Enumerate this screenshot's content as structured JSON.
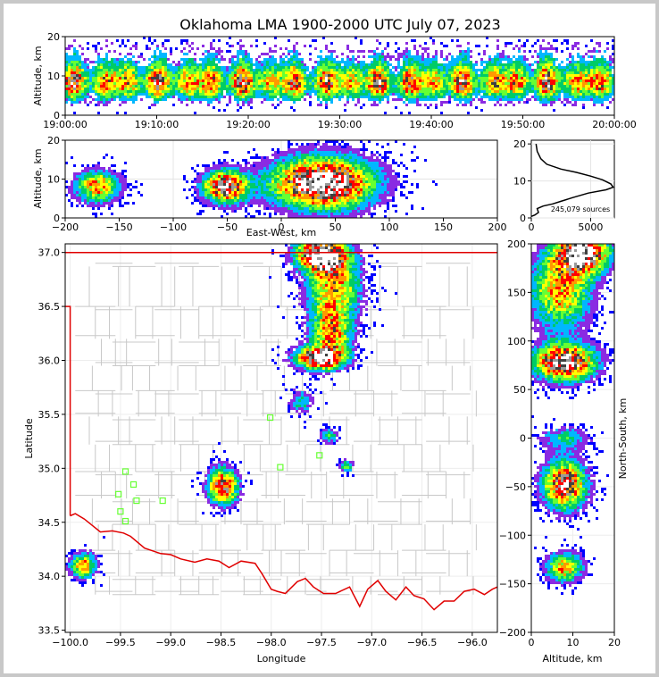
{
  "figure": {
    "title": "Oklahoma LMA 1900-2000 UTC July 07, 2023"
  },
  "colors": {
    "state_border": "#e00000",
    "county_border": "#c8c8c8",
    "station_marker": "#66ff33",
    "frame": "#c8c8c8"
  },
  "chart_data": [
    {
      "id": "time-height",
      "type": "heatmap",
      "ylabel": "Altitude, km",
      "ylim": [
        0,
        20
      ],
      "yticks": [
        0,
        10,
        20
      ],
      "xlim_minutes": [
        0,
        60
      ],
      "xticks": [
        "19:00:00",
        "19:10:00",
        "19:20:00",
        "19:30:00",
        "19:40:00",
        "19:50:00",
        "20:00:00"
      ],
      "density_peak_altitude_km": 8
    },
    {
      "id": "ew-altitude",
      "type": "heatmap",
      "xlabel": "East-West, km",
      "ylabel": "Altitude, km",
      "xlim": [
        -200,
        200
      ],
      "ylim": [
        0,
        20
      ],
      "xticks": [
        -200,
        -150,
        -100,
        -50,
        0,
        50,
        100,
        150,
        200
      ],
      "yticks": [
        0,
        10,
        20
      ],
      "clusters": [
        {
          "x": -170,
          "z": 8,
          "intensity": 0.6
        },
        {
          "x": -52,
          "z": 8,
          "intensity": 0.85
        },
        {
          "x": 38,
          "z": 9,
          "intensity": 1.0
        }
      ]
    },
    {
      "id": "altitude-histogram",
      "type": "line",
      "xlim": [
        0,
        7000
      ],
      "ylim": [
        0,
        21
      ],
      "xticks": [
        0,
        5000
      ],
      "yticks": [
        0,
        10,
        20
      ],
      "annotation": "245,079 sources",
      "points": [
        [
          0,
          0.4
        ],
        [
          300,
          0.8
        ],
        [
          600,
          1.5
        ],
        [
          500,
          2.5
        ],
        [
          1000,
          3.2
        ],
        [
          1800,
          3.8
        ],
        [
          2500,
          4.5
        ],
        [
          3500,
          5.5
        ],
        [
          4800,
          6.7
        ],
        [
          6300,
          7.6
        ],
        [
          6900,
          8.3
        ],
        [
          6700,
          9.2
        ],
        [
          6000,
          10.3
        ],
        [
          5000,
          11.3
        ],
        [
          3800,
          12.3
        ],
        [
          2500,
          13.2
        ],
        [
          1300,
          14.5
        ],
        [
          800,
          16
        ],
        [
          500,
          18
        ],
        [
          400,
          20
        ]
      ]
    },
    {
      "id": "plan-view",
      "type": "heatmap",
      "xlabel": "Longitude",
      "ylabel": "Latitude",
      "xlim": [
        -100.05,
        -95.75
      ],
      "ylim": [
        33.48,
        37.08
      ],
      "xticks": [
        -100.0,
        -99.5,
        -99.0,
        -98.5,
        -98.0,
        -97.5,
        -97.0,
        -96.5,
        -96.0
      ],
      "yticks": [
        33.5,
        34.0,
        34.5,
        35.0,
        35.5,
        36.0,
        36.5,
        37.0
      ],
      "xtick_labels": [
        "−100.0",
        "−99.5",
        "−99.0",
        "−98.5",
        "−98.0",
        "−97.5",
        "−97.0",
        "−96.5",
        "−96.0"
      ],
      "ytick_labels": [
        "33.5",
        "34.0",
        "34.5",
        "35.0",
        "35.5",
        "36.0",
        "36.5",
        "37.0"
      ],
      "stations": [
        [
          -98.01,
          35.47
        ],
        [
          -97.91,
          35.01
        ],
        [
          -99.45,
          34.97
        ],
        [
          -99.37,
          34.85
        ],
        [
          -99.52,
          34.76
        ],
        [
          -99.34,
          34.7
        ],
        [
          -99.5,
          34.6
        ],
        [
          -99.45,
          34.51
        ],
        [
          -99.08,
          34.7
        ],
        [
          -97.52,
          35.12
        ]
      ],
      "state_border": [
        [
          -100.05,
          37.0
        ],
        [
          -95.75,
          37.0
        ]
      ],
      "panhandle_edge": [
        [
          -100.05,
          36.5
        ],
        [
          -100.0,
          36.5
        ],
        [
          -100.0,
          34.56
        ]
      ],
      "red_river": [
        [
          -100.0,
          34.56
        ],
        [
          -99.95,
          34.58
        ],
        [
          -99.86,
          34.53
        ],
        [
          -99.7,
          34.41
        ],
        [
          -99.58,
          34.42
        ],
        [
          -99.47,
          34.4
        ],
        [
          -99.4,
          34.37
        ],
        [
          -99.26,
          34.26
        ],
        [
          -99.1,
          34.21
        ],
        [
          -99.0,
          34.2
        ],
        [
          -98.9,
          34.16
        ],
        [
          -98.76,
          34.13
        ],
        [
          -98.64,
          34.16
        ],
        [
          -98.52,
          34.14
        ],
        [
          -98.42,
          34.08
        ],
        [
          -98.3,
          34.14
        ],
        [
          -98.16,
          34.12
        ],
        [
          -98.09,
          34.02
        ],
        [
          -98.0,
          33.88
        ],
        [
          -97.94,
          33.86
        ],
        [
          -97.86,
          33.84
        ],
        [
          -97.74,
          33.95
        ],
        [
          -97.66,
          33.98
        ],
        [
          -97.58,
          33.9
        ],
        [
          -97.48,
          33.84
        ],
        [
          -97.36,
          33.84
        ],
        [
          -97.22,
          33.9
        ],
        [
          -97.12,
          33.72
        ],
        [
          -97.04,
          33.88
        ],
        [
          -96.94,
          33.96
        ],
        [
          -96.86,
          33.86
        ],
        [
          -96.76,
          33.78
        ],
        [
          -96.66,
          33.9
        ],
        [
          -96.58,
          33.82
        ],
        [
          -96.48,
          33.79
        ],
        [
          -96.38,
          33.69
        ],
        [
          -96.28,
          33.77
        ],
        [
          -96.18,
          33.77
        ],
        [
          -96.08,
          33.86
        ],
        [
          -95.98,
          33.88
        ],
        [
          -95.88,
          33.83
        ],
        [
          -95.8,
          33.88
        ],
        [
          -95.75,
          33.9
        ]
      ],
      "counties": {
        "rows": [
          36.87,
          36.5,
          36.2,
          35.95,
          35.72,
          35.48,
          35.22,
          34.97,
          34.72,
          34.48,
          34.24,
          34.0,
          33.83
        ],
        "cols": [
          -99.75,
          -99.55,
          -99.38,
          -99.15,
          -98.96,
          -98.72,
          -98.52,
          -98.3,
          -98.08,
          -97.9,
          -97.66,
          -97.45,
          -97.22,
          -96.98,
          -96.74,
          -96.5,
          -96.26,
          -96.02
        ]
      },
      "clusters": [
        {
          "lon": -97.5,
          "lat": 36.98,
          "slon": 0.17,
          "slat": 0.1,
          "intensity": 1.0
        },
        {
          "lon": -97.38,
          "lat": 36.68,
          "slon": 0.18,
          "slat": 0.22,
          "intensity": 0.6
        },
        {
          "lon": -97.4,
          "lat": 36.24,
          "slon": 0.14,
          "slat": 0.16,
          "intensity": 0.55
        },
        {
          "lon": -97.52,
          "lat": 36.02,
          "slon": 0.16,
          "slat": 0.07,
          "intensity": 0.95
        },
        {
          "lon": -98.48,
          "lat": 34.83,
          "slon": 0.1,
          "slat": 0.11,
          "intensity": 0.85
        },
        {
          "lon": -99.87,
          "lat": 34.1,
          "slon": 0.09,
          "slat": 0.08,
          "intensity": 0.6
        },
        {
          "lon": -97.42,
          "lat": 35.3,
          "slon": 0.06,
          "slat": 0.05,
          "intensity": 0.35
        },
        {
          "lon": -97.25,
          "lat": 35.02,
          "slon": 0.05,
          "slat": 0.04,
          "intensity": 0.35
        },
        {
          "lon": -97.7,
          "lat": 35.62,
          "slon": 0.08,
          "slat": 0.08,
          "intensity": 0.3
        }
      ]
    },
    {
      "id": "ns-altitude",
      "type": "heatmap",
      "xlabel": "Altitude, km",
      "ylabel": "North-South, km",
      "xlim": [
        0,
        20
      ],
      "ylim": [
        -200,
        200
      ],
      "xticks": [
        0,
        10,
        20
      ],
      "yticks": [
        -200,
        -150,
        -100,
        -50,
        0,
        50,
        100,
        150,
        200
      ],
      "clusters": [
        {
          "z": 12,
          "y": 190,
          "sz": 4.5,
          "sy": 14,
          "intensity": 1.0
        },
        {
          "z": 7,
          "y": 150,
          "sz": 5,
          "sy": 25,
          "intensity": 0.6
        },
        {
          "z": 8,
          "y": 78,
          "sz": 5,
          "sy": 13,
          "intensity": 0.95
        },
        {
          "z": 8,
          "y": -48,
          "sz": 3.5,
          "sy": 17,
          "intensity": 0.85
        },
        {
          "z": 8,
          "y": -133,
          "sz": 3,
          "sy": 10,
          "intensity": 0.6
        },
        {
          "z": 8,
          "y": 0,
          "sz": 4,
          "sy": 8,
          "intensity": 0.3
        }
      ]
    }
  ]
}
